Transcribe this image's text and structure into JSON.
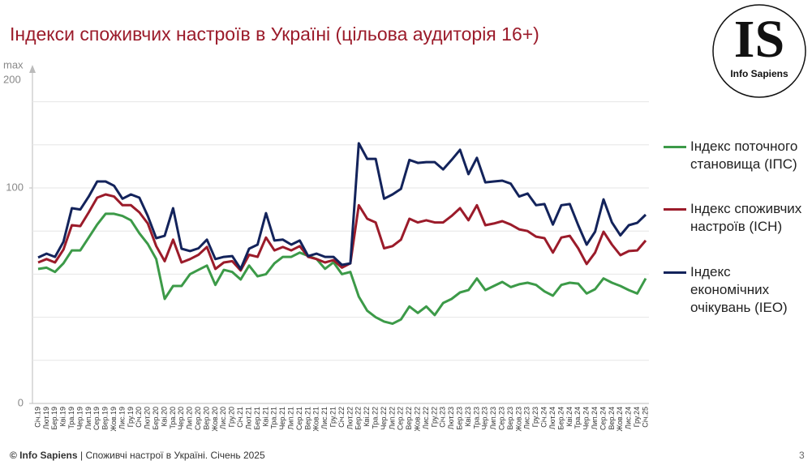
{
  "chart_data": {
    "type": "line",
    "title": "Індекси споживчих настроїв в Україні (цільова аудиторія 16+)",
    "y_axis_max_label": "max",
    "y_axis_top_label": "200",
    "ylim": [
      0,
      150
    ],
    "yticks": [
      0,
      100
    ],
    "gridlines": [
      20,
      40,
      60,
      80,
      100,
      120,
      140
    ],
    "grid": true,
    "legend": "right",
    "categories": [
      "Січ.19",
      "Лют.19",
      "Бер.19",
      "Кві.19",
      "Тра.19",
      "Чер.19",
      "Лип.19",
      "Сер.19",
      "Вер.19",
      "Жов.19",
      "Лис.19",
      "Гру.19",
      "Січ.20",
      "Лют.20",
      "Бер.20",
      "Кві.20",
      "Тра.20",
      "Чер.20",
      "Лип.20",
      "Сер.20",
      "Вер.20",
      "Жов.20",
      "Лис.20",
      "Гру.20",
      "Січ.21",
      "Лют.21",
      "Бер.21",
      "Кві.21",
      "Тра.21",
      "Чер.21",
      "Лип.21",
      "Сер.21",
      "Вер.21",
      "Жов.21",
      "Лис.21",
      "Гру.21",
      "Січ.22",
      "Лют.22",
      "Бер.22",
      "Кві.22",
      "Тра.22",
      "Чер.22",
      "Лип.22",
      "Сер.22",
      "Вер.22",
      "Жов.22",
      "Лис.22",
      "Гру.22",
      "Січ.23",
      "Лют.23",
      "Бер.23",
      "Кві.23",
      "Тра.23",
      "Чер.23",
      "Лип.23",
      "Сер.23",
      "Вер.23",
      "Жов.23",
      "Лис.23",
      "Гру.23",
      "Січ.24",
      "Лют.24",
      "Бер.24",
      "Кві.24",
      "Тра.24",
      "Чер.24",
      "Лип.24",
      "Сер.24",
      "Вер.24",
      "Жов.24",
      "Лис.24",
      "Гру.24",
      "Січ.25"
    ],
    "series": [
      {
        "name": "Індекс поточного становища (ІПС)",
        "color": "#3c9a48",
        "values": [
          62.4,
          63,
          61,
          65,
          71,
          71,
          77,
          83,
          88,
          88,
          87,
          85,
          79,
          74,
          67,
          48.5,
          54.5,
          54.5,
          60,
          62,
          64,
          55,
          62,
          61,
          57.5,
          64,
          59,
          60,
          65,
          68,
          68,
          70,
          68.5,
          67,
          62.5,
          65.5,
          60,
          61,
          49.6,
          43,
          40,
          38,
          37,
          39,
          45,
          42,
          45,
          41,
          46.6,
          48.5,
          51.5,
          52.6,
          58,
          52.6,
          54.5,
          56.4,
          54,
          55.3,
          56,
          55,
          52,
          50,
          55,
          56,
          55.6,
          51,
          53,
          58,
          56,
          54.5,
          52.6,
          51,
          58
        ]
      },
      {
        "name": "Індекс споживчих настроїв (ІСН)",
        "color": "#9b1b2a",
        "values": [
          65.4,
          67,
          65.4,
          71.4,
          82.7,
          82.3,
          88.7,
          95.5,
          97,
          96,
          92,
          92,
          88.7,
          83.5,
          73,
          66,
          76,
          65.4,
          67,
          69,
          72.6,
          62.4,
          65.4,
          66,
          61.7,
          69,
          68,
          77,
          71,
          72.6,
          71,
          73,
          68,
          67,
          65.4,
          66.5,
          63,
          65,
          92,
          85.7,
          84,
          72,
          73,
          76,
          85.7,
          84,
          85,
          84,
          84,
          87,
          90.6,
          85,
          92,
          82.7,
          83.5,
          84.6,
          83,
          80.8,
          80,
          77.4,
          76.7,
          70,
          77,
          77.8,
          72,
          64.7,
          70,
          79.7,
          73.7,
          68.8,
          70.7,
          71,
          75.6
        ]
      },
      {
        "name": "Індекс економічних очікувань (ІЕО)",
        "color": "#13235b",
        "values": [
          67.7,
          69.5,
          68,
          75,
          90.6,
          90,
          96,
          103,
          103,
          101,
          95,
          97,
          95.5,
          87,
          76.7,
          77.8,
          90.6,
          71.8,
          70.7,
          72,
          76,
          67,
          68,
          68.4,
          62.4,
          71.8,
          73.7,
          88.3,
          75.6,
          76,
          73.7,
          75.6,
          68.4,
          69.5,
          68,
          68,
          64.3,
          65,
          120.7,
          113.5,
          113.5,
          95,
          97,
          99.6,
          113,
          111.6,
          112,
          112,
          108.6,
          113,
          117.7,
          106.4,
          114,
          102.6,
          103,
          103.4,
          102,
          96,
          97.4,
          92,
          92.5,
          83,
          92,
          92.5,
          82.7,
          73.7,
          79.7,
          94.7,
          84,
          78,
          82.7,
          83.8,
          87.6
        ]
      }
    ]
  },
  "logo": {
    "mark": "IS",
    "name": "Info Sapiens"
  },
  "footer": {
    "brand": "© Info Sapiens",
    "text": "| Споживчі настрої в Україні. Січень 2025",
    "page": "3"
  }
}
